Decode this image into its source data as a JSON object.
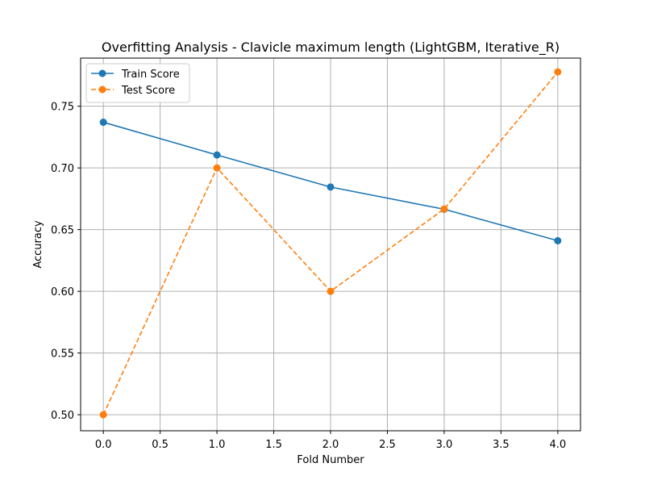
{
  "chart_data": {
    "type": "line",
    "title": "Overfitting Analysis - Clavicle maximum length (LightGBM, Iterative_R)",
    "xlabel": "Fold Number",
    "ylabel": "Accuracy",
    "x": [
      0,
      1,
      2,
      3,
      4
    ],
    "xlim": [
      -0.2,
      4.2
    ],
    "ylim": [
      0.487,
      0.789
    ],
    "xticks": [
      0.0,
      0.5,
      1.0,
      1.5,
      2.0,
      2.5,
      3.0,
      3.5,
      4.0
    ],
    "xtick_labels": [
      "0.0",
      "0.5",
      "1.0",
      "1.5",
      "2.0",
      "2.5",
      "3.0",
      "3.5",
      "4.0"
    ],
    "yticks": [
      0.5,
      0.55,
      0.6,
      0.65,
      0.7,
      0.75
    ],
    "ytick_labels": [
      "0.50",
      "0.55",
      "0.60",
      "0.65",
      "0.70",
      "0.75"
    ],
    "grid": true,
    "legend_position": "top-left",
    "series": [
      {
        "name": "Train Score",
        "values": [
          0.737,
          0.7105,
          0.6845,
          0.6665,
          0.641
        ],
        "color": "#1f77b4",
        "line_style": "solid",
        "marker": "circle"
      },
      {
        "name": "Test Score",
        "values": [
          0.5,
          0.7,
          0.6,
          0.6667,
          0.7778
        ],
        "color": "#ff7f0e",
        "line_style": "dashed",
        "marker": "circle"
      }
    ]
  }
}
